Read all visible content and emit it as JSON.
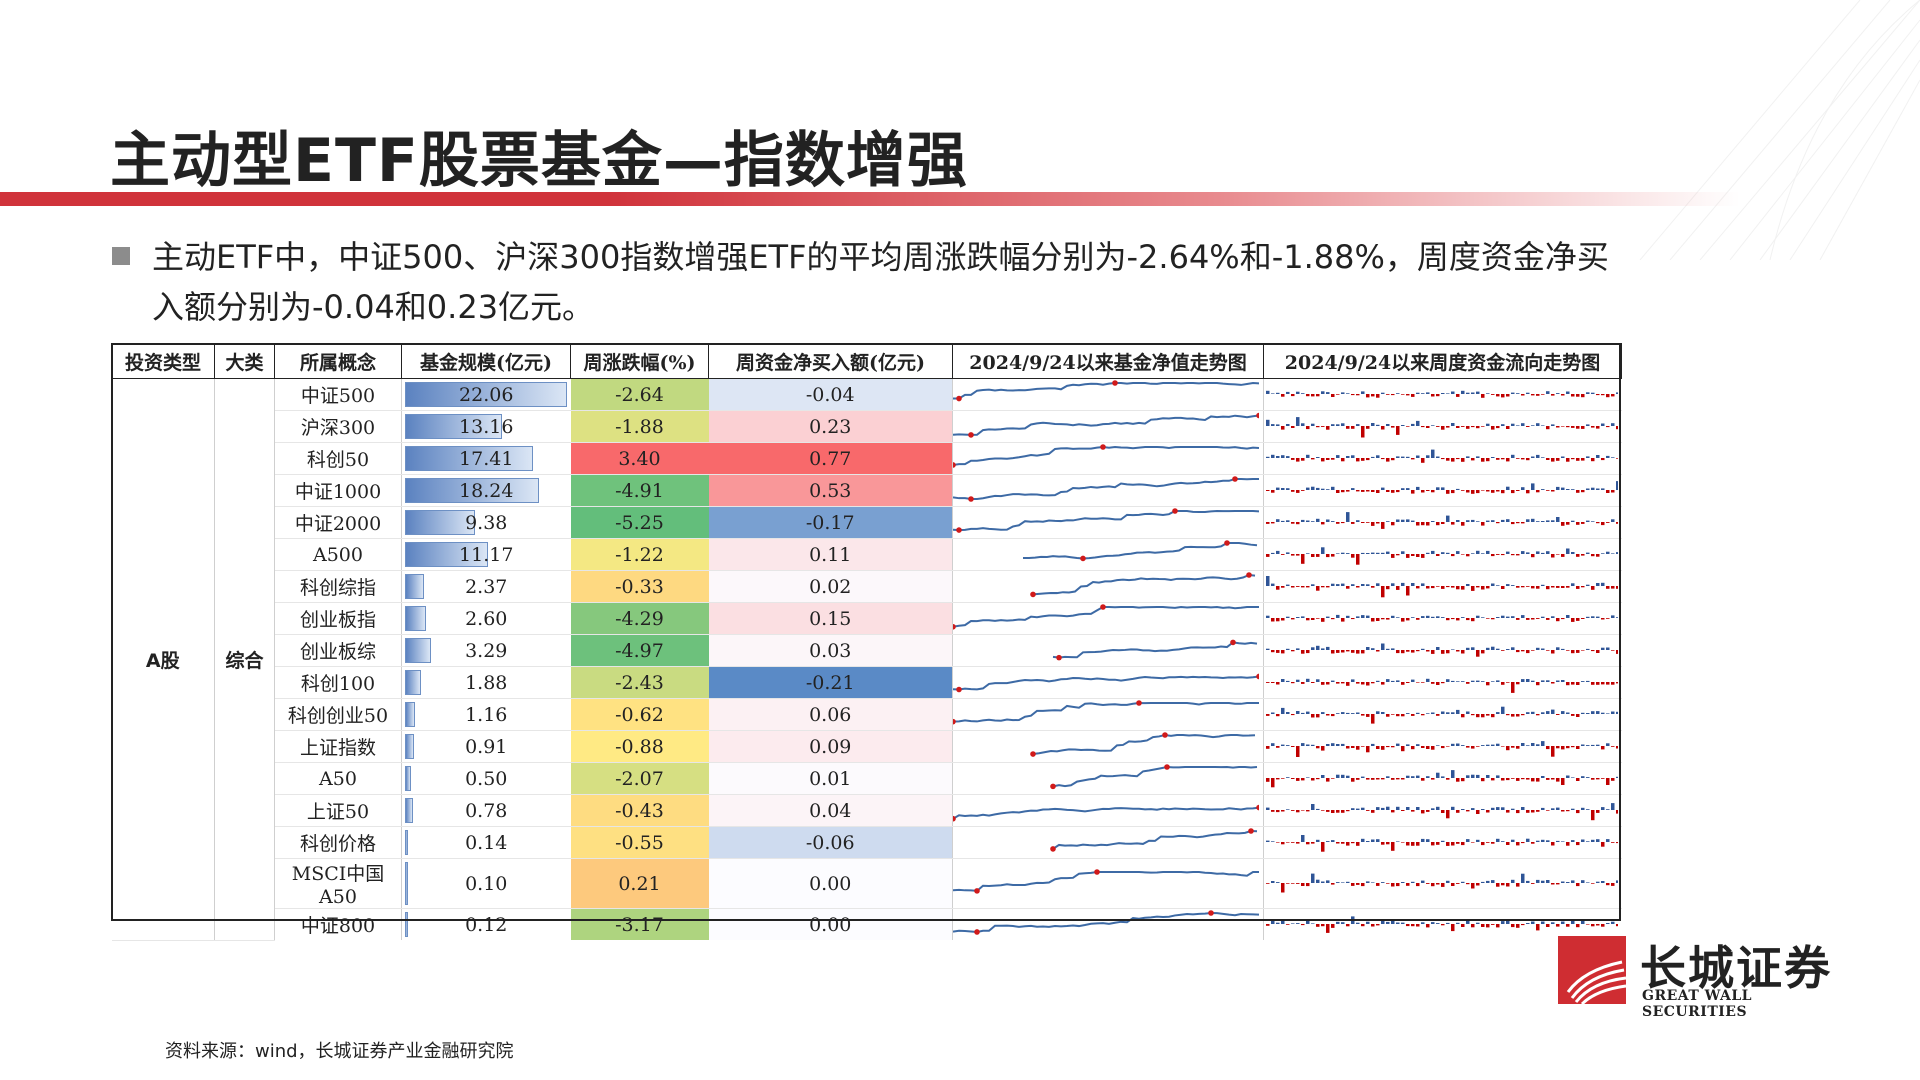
{
  "page": {
    "title": "主动型ETF股票基金—指数增强",
    "bullet": "主动ETF中，中证500、沪深300指数增强ETF的平均周涨跌幅分别为-2.64%和-1.88%，周度资金净买入额分别为-0.04和0.23亿元。",
    "source": "资料来源：wind，长城证券产业金融研究院"
  },
  "logo": {
    "cn": "长城证券",
    "en": "GREAT WALL SECURITIES",
    "icon": "great-wall-logo-icon"
  },
  "table": {
    "headers": [
      "投资类型",
      "大类",
      "所属概念",
      "基金规模(亿元)",
      "周涨跌幅(%)",
      "周资金净买入额(亿元)",
      "2024/9/24以来基金净值走势图",
      "2024/9/24以来周度资金流向走势图"
    ],
    "invest_type": "A股",
    "category": "综合",
    "rows": [
      {
        "concept": "中证500",
        "scale": "22.06",
        "change": "-2.64",
        "flow": "-0.04"
      },
      {
        "concept": "沪深300",
        "scale": "13.16",
        "change": "-1.88",
        "flow": "0.23"
      },
      {
        "concept": "科创50",
        "scale": "17.41",
        "change": "3.40",
        "flow": "0.77"
      },
      {
        "concept": "中证1000",
        "scale": "18.24",
        "change": "-4.91",
        "flow": "0.53"
      },
      {
        "concept": "中证2000",
        "scale": "9.38",
        "change": "-5.25",
        "flow": "-0.17"
      },
      {
        "concept": "A500",
        "scale": "11.17",
        "change": "-1.22",
        "flow": "0.11"
      },
      {
        "concept": "科创综指",
        "scale": "2.37",
        "change": "-0.33",
        "flow": "0.02"
      },
      {
        "concept": "创业板指",
        "scale": "2.60",
        "change": "-4.29",
        "flow": "0.15"
      },
      {
        "concept": "创业板综",
        "scale": "3.29",
        "change": "-4.97",
        "flow": "0.03"
      },
      {
        "concept": "科创100",
        "scale": "1.88",
        "change": "-2.43",
        "flow": "-0.21"
      },
      {
        "concept": "科创创业50",
        "scale": "1.16",
        "change": "-0.62",
        "flow": "0.06"
      },
      {
        "concept": "上证指数",
        "scale": "0.91",
        "change": "-0.88",
        "flow": "0.09"
      },
      {
        "concept": "A50",
        "scale": "0.50",
        "change": "-2.07",
        "flow": "0.01"
      },
      {
        "concept": "上证50",
        "scale": "0.78",
        "change": "-0.43",
        "flow": "0.04"
      },
      {
        "concept": "科创价格",
        "scale": "0.14",
        "change": "-0.55",
        "flow": "-0.06"
      },
      {
        "concept": "MSCI中国A50",
        "scale": "0.10",
        "change": "0.21",
        "flow": "0.00"
      },
      {
        "concept": "中证800",
        "scale": "0.12",
        "change": "-3.17",
        "flow": "0.00"
      }
    ]
  },
  "colors": {
    "brand_red": "#d0333b",
    "bar_blue": "#5b82c0",
    "nav_line": "#3d6aa5",
    "marker_red": "#d11a1a",
    "inflow_blue": "#2f5597",
    "outflow_red": "#c00000"
  }
}
